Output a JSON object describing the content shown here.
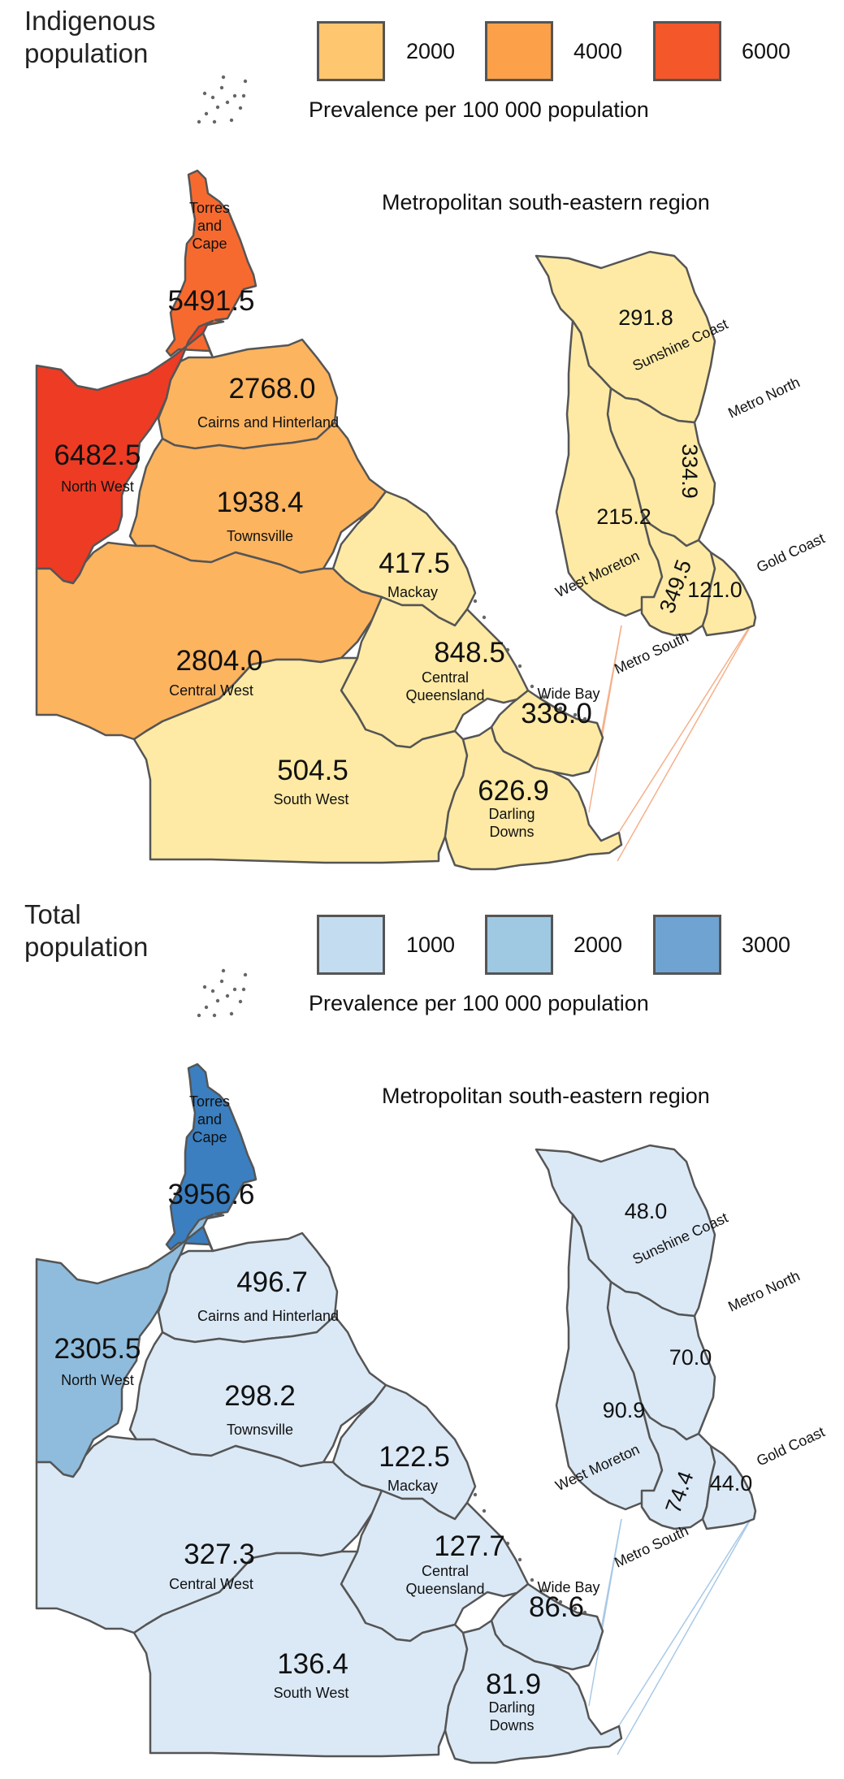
{
  "panels": [
    {
      "id": "indigenous",
      "title_line1": "Indigenous",
      "title_line2": "population",
      "legend": {
        "items": [
          {
            "label": "2000",
            "color": "#fdc66f"
          },
          {
            "label": "4000",
            "color": "#fca14a"
          },
          {
            "label": "6000",
            "color": "#f4572a"
          }
        ],
        "caption": "Prevalence per 100 000 population"
      },
      "metro_caption": "Metropolitan south-eastern region",
      "regions": {
        "torres": {
          "name": "Torres\nand\nCape",
          "value": "5491.5",
          "color": "#f76a2f"
        },
        "north_west": {
          "name": "North West",
          "value": "6482.5",
          "color": "#ee3b24"
        },
        "cairns": {
          "name": "Cairns and Hinterland",
          "value": "2768.0",
          "color": "#fdb45f"
        },
        "townsville": {
          "name": "Townsville",
          "value": "1938.4",
          "color": "#fdb45f"
        },
        "mackay": {
          "name": "Mackay",
          "value": "417.5",
          "color": "#feeaa4"
        },
        "central_west": {
          "name": "Central West",
          "value": "2804.0",
          "color": "#fdb45f"
        },
        "central_qld": {
          "name": "Central\nQueensland",
          "value": "848.5",
          "color": "#feeaa4"
        },
        "wide_bay": {
          "name": "Wide Bay",
          "value": "338.0",
          "color": "#feeaa4"
        },
        "south_west": {
          "name": "South West",
          "value": "504.5",
          "color": "#feeaa4"
        },
        "darling": {
          "name": "Darling\nDowns",
          "value": "626.9",
          "color": "#feeaa4"
        },
        "sunshine": {
          "name": "Sunshine Coast",
          "value": "291.8",
          "color": "#feeaa4"
        },
        "metro_north": {
          "name": "Metro North",
          "value": "334.9",
          "color": "#feeaa4"
        },
        "west_moreton": {
          "name": "West Moreton",
          "value": "215.2",
          "color": "#feeaa4"
        },
        "metro_south": {
          "name": "Metro South",
          "value": "349.5",
          "color": "#feeaa4"
        },
        "gold_coast": {
          "name": "Gold Coast",
          "value": "121.0",
          "color": "#feeaa4"
        }
      },
      "connector_color": "#f5b08a"
    },
    {
      "id": "total",
      "title_line1": "Total",
      "title_line2": "population",
      "legend": {
        "items": [
          {
            "label": "1000",
            "color": "#c3dcef"
          },
          {
            "label": "2000",
            "color": "#9fc8e3"
          },
          {
            "label": "3000",
            "color": "#6fa4d2"
          }
        ],
        "caption": "Prevalence per 100 000 population"
      },
      "metro_caption": "Metropolitan south-eastern region",
      "regions": {
        "torres": {
          "name": "Torres\nand\nCape",
          "value": "3956.6",
          "color": "#3b7fc0"
        },
        "north_west": {
          "name": "North West",
          "value": "2305.5",
          "color": "#8fbcdc"
        },
        "cairns": {
          "name": "Cairns and Hinterland",
          "value": "496.7",
          "color": "#dbe9f6"
        },
        "townsville": {
          "name": "Townsville",
          "value": "298.2",
          "color": "#dbe9f6"
        },
        "mackay": {
          "name": "Mackay",
          "value": "122.5",
          "color": "#dbe9f6"
        },
        "central_west": {
          "name": "Central West",
          "value": "327.3",
          "color": "#dbe9f6"
        },
        "central_qld": {
          "name": "Central\nQueensland",
          "value": "127.7",
          "color": "#dbe9f6"
        },
        "wide_bay": {
          "name": "Wide Bay",
          "value": "86.6",
          "color": "#dbe9f6"
        },
        "south_west": {
          "name": "South West",
          "value": "136.4",
          "color": "#dbe9f6"
        },
        "darling": {
          "name": "Darling\nDowns",
          "value": "81.9",
          "color": "#dbe9f6"
        },
        "sunshine": {
          "name": "Sunshine Coast",
          "value": "48.0",
          "color": "#dbe9f6"
        },
        "metro_north": {
          "name": "Metro North",
          "value": "70.0",
          "color": "#dbe9f6"
        },
        "west_moreton": {
          "name": "West Moreton",
          "value": "90.9",
          "color": "#dbe9f6"
        },
        "metro_south": {
          "name": "Metro South",
          "value": "74.4",
          "color": "#dbe9f6"
        },
        "gold_coast": {
          "name": "Gold Coast",
          "value": "44.0",
          "color": "#dbe9f6"
        }
      },
      "connector_color": "#a9c9e6"
    }
  ]
}
